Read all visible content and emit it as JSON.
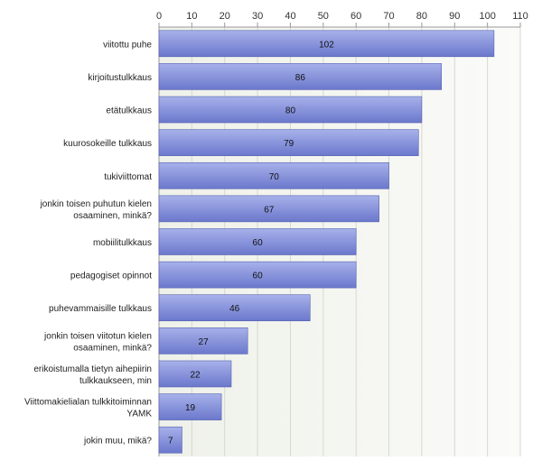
{
  "chart_data": {
    "type": "bar",
    "orientation": "horizontal",
    "categories": [
      "viitottu puhe",
      "kirjoitustulkkaus",
      "etätulkkaus",
      "kuurosokeille tulkkaus",
      "tukiviittomat",
      "jonkin toisen puhutun kielen osaaminen, minkä?",
      "mobiilitulkkaus",
      "pedagogiset opinnot",
      "puhevammaisille tulkkaus",
      "jonkin toisen viitotun kielen osaaminen, minkä?",
      "erikoistumalla tietyn aihepiirin tulkkaukseen, min",
      "Viittomakielialan tulkkitoiminnan YAMK",
      "jokin muu, mikä?"
    ],
    "category_lines": [
      [
        "viitottu puhe"
      ],
      [
        "kirjoitustulkkaus"
      ],
      [
        "etätulkkaus"
      ],
      [
        "kuurosokeille tulkkaus"
      ],
      [
        "tukiviittomat"
      ],
      [
        "jonkin toisen puhutun kielen",
        "osaaminen, minkä?"
      ],
      [
        "mobiilitulkkaus"
      ],
      [
        "pedagogiset opinnot"
      ],
      [
        "puhevammaisille tulkkaus"
      ],
      [
        "jonkin toisen viitotun kielen",
        "osaaminen, minkä?"
      ],
      [
        "erikoistumalla tietyn aihepiirin",
        "tulkkaukseen, min"
      ],
      [
        "Viittomakielialan tulkkitoiminnan",
        "YAMK"
      ],
      [
        "jokin muu, mikä?"
      ]
    ],
    "values": [
      102,
      86,
      80,
      79,
      70,
      67,
      60,
      60,
      46,
      27,
      22,
      19,
      7
    ],
    "xlim": [
      0,
      110
    ],
    "ticks": [
      0,
      10,
      20,
      30,
      40,
      50,
      60,
      70,
      80,
      90,
      100,
      110
    ],
    "axis_position": "top",
    "grid": true,
    "data_labels": true,
    "title": "",
    "xlabel": "",
    "ylabel": "",
    "colors": {
      "bar_top": "#a7b1ea",
      "bar_bottom": "#6b78cc",
      "bar_border": "#5560b0",
      "plot_bg": "#f4f6f1",
      "grid": "#d6d8d0",
      "axis": "#999999"
    }
  }
}
